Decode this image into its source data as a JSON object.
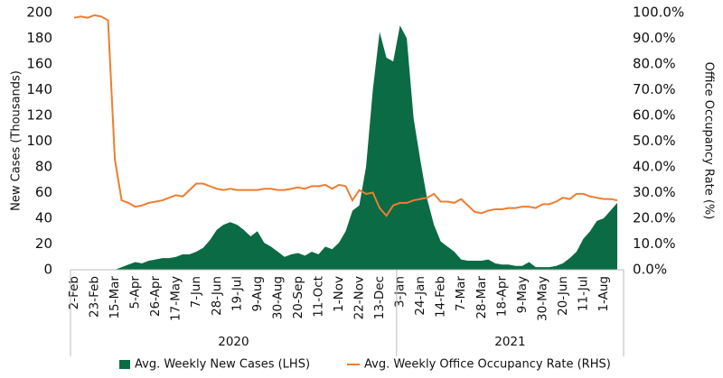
{
  "chart_data": {
    "type": "area-line",
    "ylabel": "New Cases (Thousands)",
    "y2label": "Office Occupancy Rate (%)",
    "categories": [
      "2-Feb",
      null,
      null,
      "23-Feb",
      null,
      null,
      "15-Mar",
      null,
      null,
      "5-Apr",
      null,
      null,
      "26-Apr",
      null,
      null,
      "17-May",
      null,
      null,
      "7-Jun",
      null,
      null,
      "28-Jun",
      null,
      null,
      "19-Jul",
      null,
      null,
      "9-Aug",
      null,
      null,
      "30-Aug",
      null,
      null,
      "20-Sep",
      null,
      null,
      "11-Oct",
      null,
      null,
      "1-Nov",
      null,
      null,
      "22-Nov",
      null,
      null,
      "13-Dec",
      null,
      null,
      "3-Jan",
      null,
      null,
      "24-Jan",
      null,
      null,
      "14-Feb",
      null,
      null,
      "7-Mar",
      null,
      null,
      "28-Mar",
      null,
      null,
      "18-Apr",
      null,
      null,
      "9-May",
      null,
      null,
      "30-May",
      null,
      null,
      "20-Jun",
      null,
      null,
      "11-Jul",
      null,
      null,
      "1-Aug",
      null,
      null
    ],
    "x_groups": [
      {
        "label": "2020",
        "count": 48
      },
      {
        "label": "2021",
        "count": 33
      }
    ],
    "series": [
      {
        "name": "Avg. Weekly New Cases (LHS)",
        "color": "#0b6b45",
        "type": "area",
        "values": [
          0,
          0,
          0,
          0,
          0,
          0,
          0,
          2,
          4,
          6,
          5,
          7,
          8,
          9,
          9,
          10,
          12,
          12,
          14,
          17,
          23,
          31,
          35,
          37,
          35,
          31,
          26,
          30,
          21,
          18,
          14,
          10,
          12,
          13,
          11,
          14,
          12,
          18,
          16,
          21,
          30,
          46,
          50,
          80,
          140,
          185,
          165,
          162,
          190,
          180,
          118,
          85,
          55,
          35,
          22,
          18,
          14,
          8,
          7,
          7,
          7,
          8,
          5,
          4,
          4,
          3,
          3,
          6,
          2,
          2,
          2,
          3,
          5,
          9,
          14,
          24,
          30,
          38,
          40,
          46,
          52
        ]
      },
      {
        "name": "Avg. Weekly Office Occupancy Rate (RHS)",
        "color": "#ee7d31",
        "type": "line",
        "axis": "y2",
        "values": [
          98,
          98.5,
          98,
          99,
          98.5,
          97,
          43,
          27,
          26,
          24.5,
          25,
          26,
          26.5,
          27,
          28,
          29,
          28.5,
          31,
          33.5,
          33.5,
          32.5,
          31.5,
          31,
          31.5,
          31,
          31,
          31,
          31,
          31.5,
          31.5,
          31,
          31,
          31.5,
          32,
          31.5,
          32.5,
          32.5,
          33,
          31.5,
          33,
          32.5,
          27,
          31,
          29.5,
          30,
          24,
          21,
          25,
          26,
          26,
          27,
          27.5,
          28,
          29.5,
          26.5,
          26.5,
          26,
          27.5,
          25,
          22.5,
          22,
          23,
          23.5,
          23.5,
          24,
          24,
          24.5,
          24.5,
          24,
          25.5,
          25.5,
          26.5,
          28,
          27.5,
          29.5,
          29.5,
          28.5,
          28,
          27.5,
          27.5,
          27
        ]
      }
    ],
    "ylim": [
      0,
      200
    ],
    "yticks": [
      0,
      20,
      40,
      60,
      80,
      100,
      120,
      140,
      160,
      180,
      200
    ],
    "y2lim": [
      0,
      100
    ],
    "y2ticks": [
      {
        "value": 0,
        "label": "0.0%"
      },
      {
        "value": 10,
        "label": "10.0%"
      },
      {
        "value": 20,
        "label": "20.0%"
      },
      {
        "value": 30,
        "label": "30.0%"
      },
      {
        "value": 40,
        "label": "40.0%"
      },
      {
        "value": 50,
        "label": "50.0%"
      },
      {
        "value": 60,
        "label": "60.0%"
      },
      {
        "value": 70,
        "label": "70.0%"
      },
      {
        "value": 80,
        "label": "80.0%"
      },
      {
        "value": 90,
        "label": "90.0%"
      },
      {
        "value": 100,
        "label": "100.0%"
      }
    ],
    "legend": "bottom"
  }
}
